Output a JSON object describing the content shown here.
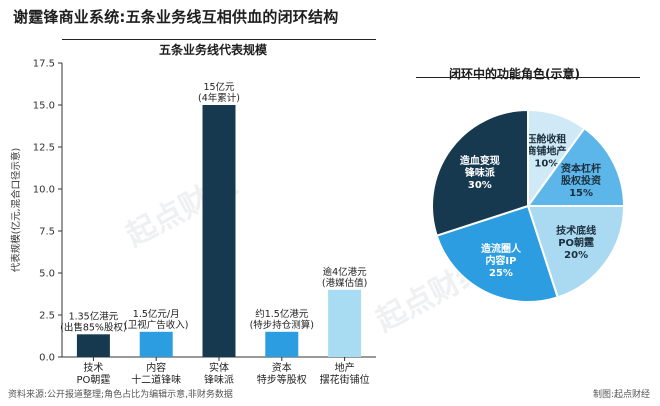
{
  "title": "谢霆锋商业系统:五条业务线互相供血的闭环结构",
  "watermark": "起点财经",
  "footer": {
    "source": "资料来源:公开报道整理;角色占比为编辑示意,非财务数据",
    "credit": "制图:起点财经"
  },
  "chart_data": [
    {
      "type": "bar",
      "title": "五条业务线代表规模",
      "ylabel": "代表规模(亿元,混合口径示意)",
      "ylim": [
        0,
        17.5
      ],
      "yticks": [
        "0.0",
        "2.5",
        "5.0",
        "7.5",
        "10.0",
        "12.5",
        "15.0",
        "17.5"
      ],
      "grid": false,
      "categories": [
        [
          "技术",
          "PO朝霆"
        ],
        [
          "内容",
          "十二道锋味"
        ],
        [
          "实体",
          "锋味派"
        ],
        [
          "资本",
          "特步等股权"
        ],
        [
          "地产",
          "摆花街铺位"
        ]
      ],
      "values": [
        1.35,
        1.5,
        15,
        1.5,
        4
      ],
      "annotations": [
        [
          "1.35亿港元",
          "(出售85%股权)"
        ],
        [
          "1.5亿元/月",
          "(卫视广告收入)"
        ],
        [
          "15亿元",
          "(4年累计)"
        ],
        [
          "约1.5亿港元",
          "(特步持仓测算)"
        ],
        [
          "逾4亿港元",
          "(港媒估值)"
        ]
      ],
      "colors": [
        "#17394f",
        "#2b9de0",
        "#17394f",
        "#2b9de0",
        "#a8dcf3"
      ]
    },
    {
      "type": "pie",
      "title": "闭环中的功能角色(示意)",
      "slices": [
        {
          "label": [
            "压舱收租",
            "商铺地产"
          ],
          "pct": "10%",
          "value": 10,
          "color": "#cfeaf6"
        },
        {
          "label": [
            "资本杠杆",
            "股权投资"
          ],
          "pct": "15%",
          "value": 15,
          "color": "#5cb6ea"
        },
        {
          "label": [
            "技术底线",
            "PO朝霆"
          ],
          "pct": "20%",
          "value": 20,
          "color": "#aad9f2"
        },
        {
          "label": [
            "造流圈人",
            "内容IP"
          ],
          "pct": "25%",
          "value": 25,
          "color": "#2b9de0"
        },
        {
          "label": [
            "造血变现",
            "锋味派"
          ],
          "pct": "30%",
          "value": 30,
          "color": "#17394f"
        }
      ]
    }
  ]
}
